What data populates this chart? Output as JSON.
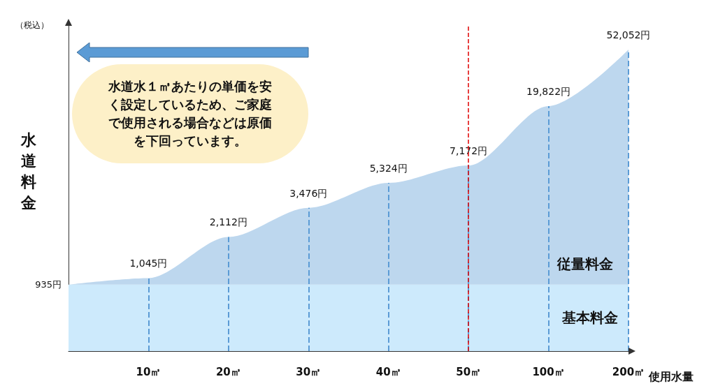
{
  "chart_data": {
    "type": "area",
    "ylabel": "水道料金",
    "xlabel": "使用水量",
    "annotations": [
      "（税込）",
      "水道水１㎥あたりの単価を安く設定しているため、ご家庭で使用される場合などは原価を下回っています。"
    ],
    "categories": [
      null,
      "10㎥",
      "20㎥",
      "30㎥",
      "40㎥",
      "50㎥",
      "100㎥",
      "200㎥"
    ],
    "series": [
      {
        "name": "従量料金",
        "color": "#bdd7ee",
        "values": [
          935,
          1045,
          2112,
          3476,
          5324,
          7172,
          19822,
          52052
        ],
        "value_labels": [
          "935円",
          "1,045円",
          "2,112円",
          "3,476円",
          "5,324円",
          "7,172円",
          "19,822円",
          "52,052円"
        ]
      }
    ],
    "log": true,
    "ylim": [
      300,
      80000
    ],
    "grid": false,
    "legend": false,
    "bands": [
      {
        "axis": "y",
        "from": 300,
        "to": 935,
        "label": "基本料金",
        "color": "#cdeafc"
      }
    ],
    "ref_lines": [
      {
        "axis": "x",
        "value": "50㎥",
        "color": "#e00000",
        "line_style": "dashed"
      }
    ]
  }
}
